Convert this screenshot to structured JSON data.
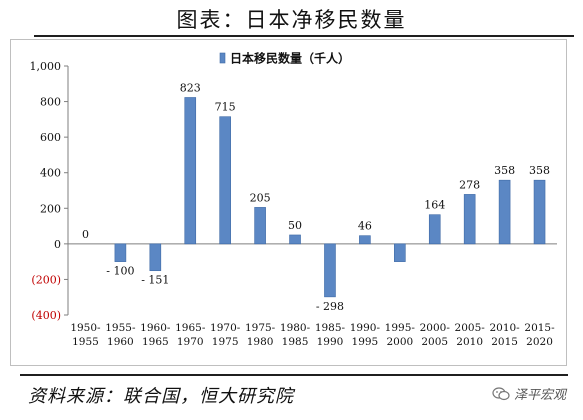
{
  "page": {
    "title": "图表：日本净移民数量",
    "source": "资料来源：联合国，恒大研究院",
    "watermark": "泽平宏观"
  },
  "colors": {
    "bar_fill": "#5b87c4",
    "bar_edge": "#3f6aa6",
    "negative_tick": "#c00000",
    "text": "#111111"
  },
  "chart_data": {
    "type": "bar",
    "categories": [
      [
        "1950-",
        "1955"
      ],
      [
        "1955-",
        "1960"
      ],
      [
        "1960-",
        "1965"
      ],
      [
        "1965-",
        "1970"
      ],
      [
        "1970-",
        "1975"
      ],
      [
        "1975-",
        "1980"
      ],
      [
        "1980-",
        "1985"
      ],
      [
        "1985-",
        "1990"
      ],
      [
        "1990-",
        "1995"
      ],
      [
        "1995-",
        "2000"
      ],
      [
        "2000-",
        "2005"
      ],
      [
        "2005-",
        "2010"
      ],
      [
        "2010-",
        "2015"
      ],
      [
        "2015-",
        "2020"
      ]
    ],
    "series": [
      {
        "name": "日本移民数量（千人）",
        "values": [
          0,
          -100,
          -151,
          823,
          715,
          205,
          50,
          -298,
          46,
          -100,
          164,
          278,
          358,
          358
        ]
      }
    ],
    "data_labels": [
      "0",
      "- 100",
      "- 151",
      "823",
      "715",
      "205",
      "50",
      "- 298",
      "46",
      "",
      "164",
      "278",
      "358",
      "358"
    ],
    "ylim": [
      -400,
      1000
    ],
    "yticks": [
      {
        "value": 1000,
        "label": "1,000"
      },
      {
        "value": 800,
        "label": "800"
      },
      {
        "value": 600,
        "label": "600"
      },
      {
        "value": 400,
        "label": "400"
      },
      {
        "value": 200,
        "label": "200"
      },
      {
        "value": 0,
        "label": "0"
      },
      {
        "value": -200,
        "label": "(200)"
      },
      {
        "value": -400,
        "label": "(400)"
      }
    ],
    "legend_position": "top-center",
    "grid": false
  }
}
